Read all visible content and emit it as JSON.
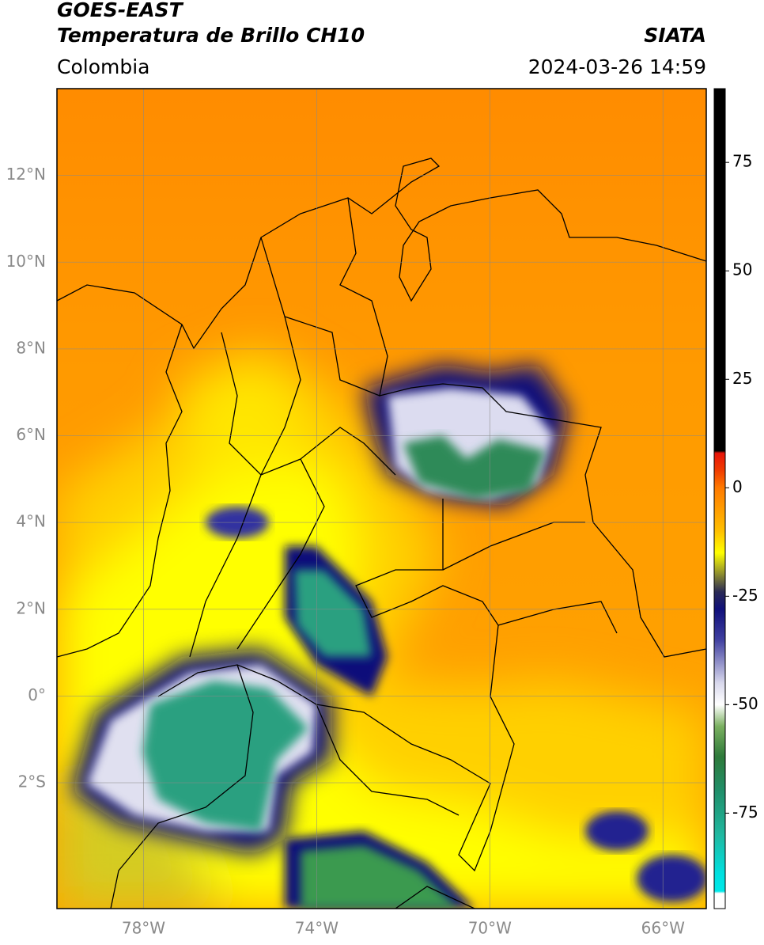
{
  "header": {
    "title": "GOES-EAST",
    "subtitle": "Temperatura de Brillo CH10",
    "region": "Colombia",
    "source": "SIATA",
    "datetime": "2024-03-26 14:59"
  },
  "map": {
    "lon_lim": [
      -80,
      -65
    ],
    "lat_lim": [
      -4.9,
      14
    ],
    "lon_ticks": [
      {
        "value": -78,
        "label": "78°W"
      },
      {
        "value": -74,
        "label": "74°W"
      },
      {
        "value": -70,
        "label": "70°W"
      },
      {
        "value": -66,
        "label": "66°W"
      }
    ],
    "lat_ticks": [
      {
        "value": 12,
        "label": "12°N"
      },
      {
        "value": 10,
        "label": "10°N"
      },
      {
        "value": 8,
        "label": "8°N"
      },
      {
        "value": 6,
        "label": "6°N"
      },
      {
        "value": 4,
        "label": "4°N"
      },
      {
        "value": 2,
        "label": "2°N"
      },
      {
        "value": 0,
        "label": "0°"
      },
      {
        "value": -2,
        "label": "2°S"
      }
    ],
    "grid": true
  },
  "colorbar": {
    "clim": [
      -97,
      92
    ],
    "ticks": [
      75,
      50,
      25,
      0,
      -25,
      -50,
      -75
    ],
    "colormap": [
      {
        "value": 92,
        "color": "#000000"
      },
      {
        "value": 8.5,
        "color": "#000000"
      },
      {
        "value": 8,
        "color": "#e8140a"
      },
      {
        "value": 4,
        "color": "#f03c00"
      },
      {
        "value": 0,
        "color": "#ff7a00"
      },
      {
        "value": -10,
        "color": "#ffc000"
      },
      {
        "value": -15,
        "color": "#ffff00"
      },
      {
        "value": -20,
        "color": "#8a8a30"
      },
      {
        "value": -24,
        "color": "#2a2a55"
      },
      {
        "value": -28,
        "color": "#10107a"
      },
      {
        "value": -35,
        "color": "#4040a0"
      },
      {
        "value": -45,
        "color": "#d8d8ec"
      },
      {
        "value": -50,
        "color": "#ffffff"
      },
      {
        "value": -55,
        "color": "#7ab060"
      },
      {
        "value": -62,
        "color": "#2e7a3a"
      },
      {
        "value": -70,
        "color": "#208f6a"
      },
      {
        "value": -80,
        "color": "#20b8a0"
      },
      {
        "value": -89,
        "color": "#00e0e0"
      },
      {
        "value": -93,
        "color": "#00e8e8"
      },
      {
        "value": -93.5,
        "color": "#ffffff"
      },
      {
        "value": -97,
        "color": "#ffffff"
      }
    ]
  }
}
